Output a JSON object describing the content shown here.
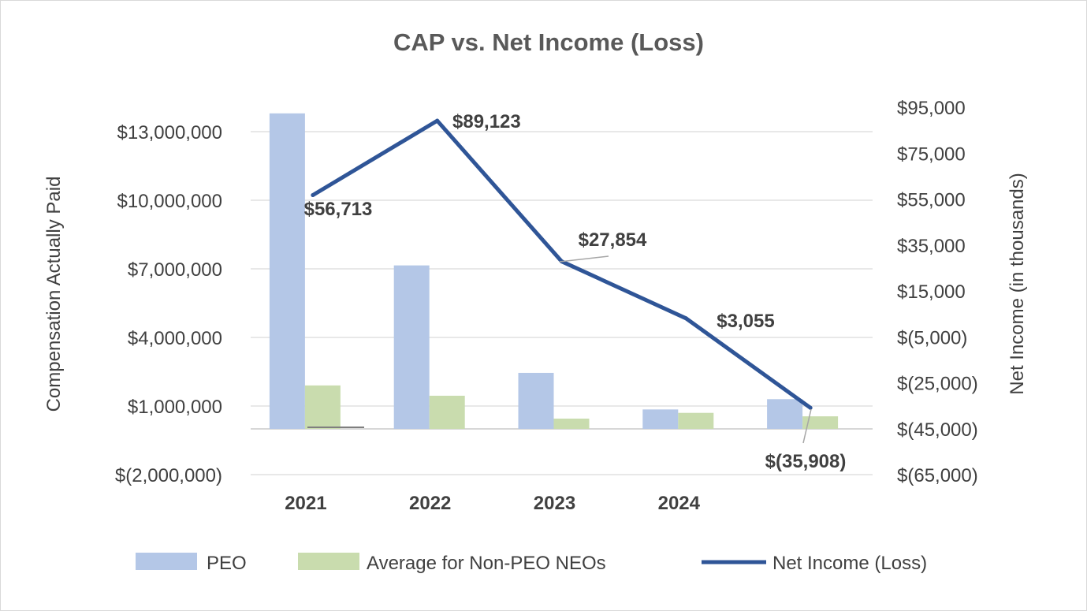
{
  "chart_data": {
    "type": "bar",
    "title": "CAP vs. Net Income (Loss)",
    "categories": [
      "2021",
      "2022",
      "2023",
      "2024",
      ""
    ],
    "y_left": {
      "label": "Compensation Actually Paid",
      "ticks": [
        -2000000,
        1000000,
        4000000,
        7000000,
        10000000,
        13000000
      ],
      "tick_labels": [
        "$(2,000,000)",
        "$1,000,000",
        "$4,000,000",
        "$7,000,000",
        "$10,000,000",
        "$13,000,000"
      ]
    },
    "y_right": {
      "label": "Net Income (in thousands)",
      "ticks": [
        -65000,
        -45000,
        -25000,
        -5000,
        15000,
        35000,
        55000,
        75000,
        95000
      ],
      "tick_labels": [
        "$(65,000)",
        "$(45,000)",
        "$(25,000)",
        "$(5,000)",
        "$15,000",
        "$35,000",
        "$55,000",
        "$75,000",
        "$95,000"
      ]
    },
    "series": [
      {
        "name": "PEO",
        "kind": "bar",
        "axis": "left",
        "color": "#b4c7e7",
        "values": [
          13800000,
          7150000,
          2450000,
          850000,
          1300000
        ]
      },
      {
        "name": "Average for Non-PEO NEOs",
        "kind": "bar",
        "axis": "left",
        "color": "#c9dcae",
        "values": [
          1900000,
          1450000,
          450000,
          700000,
          550000
        ]
      },
      {
        "name": "Net Income (Loss)",
        "kind": "line",
        "axis": "right",
        "color": "#2f5597",
        "values": [
          56713,
          89123,
          27854,
          3055,
          -35908
        ],
        "labels": [
          "$56,713",
          "$89,123",
          "$27,854",
          "$3,055",
          "$(35,908)"
        ]
      }
    ],
    "legend_position": "bottom",
    "grid": true
  }
}
